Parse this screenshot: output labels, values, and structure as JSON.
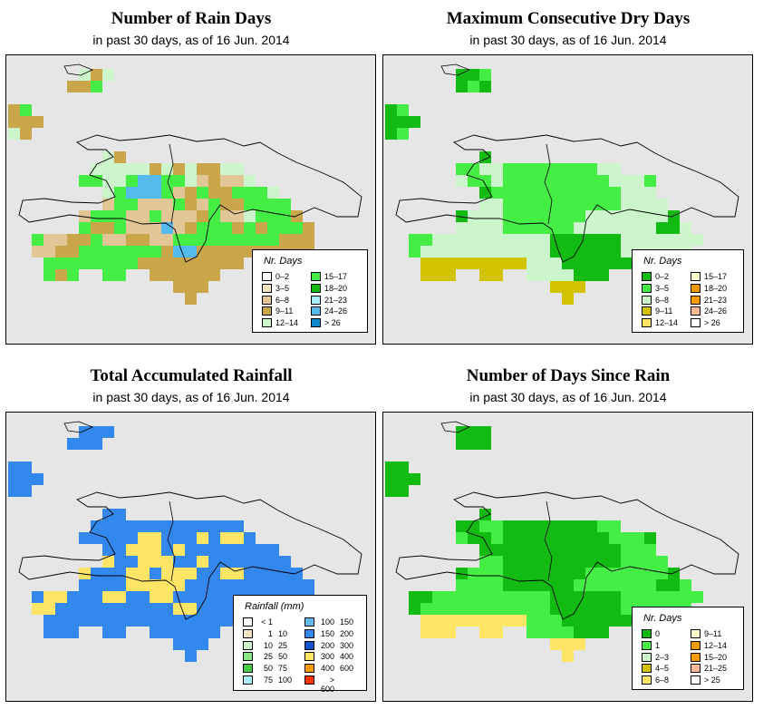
{
  "panels": [
    {
      "title": "Number of Rain Days",
      "subtitle": "in past 30 days, as of  16 Jun. 2014",
      "legend_title": "Nr. Days",
      "legend": [
        {
          "label": "0–2",
          "color": "#ffffff"
        },
        {
          "label": "3–5",
          "color": "#f3e3c2"
        },
        {
          "label": "6–8",
          "color": "#e2c695"
        },
        {
          "label": "9–11",
          "color": "#c9a64a"
        },
        {
          "label": "12–14",
          "color": "#ccf5cc"
        },
        {
          "label": "15–17",
          "color": "#44ee44"
        },
        {
          "label": "18–20",
          "color": "#11bb11"
        },
        {
          "label": "21–23",
          "color": "#aaeeff"
        },
        {
          "label": "24–26",
          "color": "#55bbee"
        },
        {
          "label": "> 26",
          "color": "#1188cc"
        }
      ]
    },
    {
      "title": "Maximum Consecutive Dry Days",
      "subtitle": "in past 30 days, as of  16 Jun. 2014",
      "legend_title": "Nr. Days",
      "legend": [
        {
          "label": "0–2",
          "color": "#11bb11"
        },
        {
          "label": "3–5",
          "color": "#44ee44"
        },
        {
          "label": "6–8",
          "color": "#ccf5cc"
        },
        {
          "label": "9–11",
          "color": "#d2c200"
        },
        {
          "label": "12–14",
          "color": "#ffe566"
        },
        {
          "label": "15–17",
          "color": "#ffffcc"
        },
        {
          "label": "18–20",
          "color": "#ee9900"
        },
        {
          "label": "21–23",
          "color": "#ff9900"
        },
        {
          "label": "24–26",
          "color": "#ffbb99"
        },
        {
          "label": "> 26",
          "color": "#ffffff"
        }
      ]
    },
    {
      "title": "Total Accumulated Rainfall",
      "subtitle": "in past 30 days, as of  16 Jun. 2014",
      "legend_title": "Rainfall (mm)",
      "legend": [
        {
          "lo": "< 1",
          "hi": "",
          "color": "#ffffff"
        },
        {
          "lo": "1",
          "hi": "10",
          "color": "#f3e3c2"
        },
        {
          "lo": "10",
          "hi": "25",
          "color": "#ccf5cc"
        },
        {
          "lo": "25",
          "hi": "50",
          "color": "#88e888"
        },
        {
          "lo": "50",
          "hi": "75",
          "color": "#44cc44"
        },
        {
          "lo": "75",
          "hi": "100",
          "color": "#aaeeff"
        },
        {
          "lo": "100",
          "hi": "150",
          "color": "#66bbee"
        },
        {
          "lo": "150",
          "hi": "200",
          "color": "#3388ee"
        },
        {
          "lo": "200",
          "hi": "300",
          "color": "#1155cc"
        },
        {
          "lo": "300",
          "hi": "400",
          "color": "#ffe566"
        },
        {
          "lo": "400",
          "hi": "600",
          "color": "#ff9900"
        },
        {
          "lo": "> 600",
          "hi": "",
          "color": "#ff3300"
        }
      ]
    },
    {
      "title": "Number of Days Since Rain",
      "subtitle": "in past 30 days, as of  16 Jun. 2014",
      "legend_title": "Nr. Days",
      "legend": [
        {
          "label": "0",
          "color": "#11bb11"
        },
        {
          "label": "1",
          "color": "#44ee44"
        },
        {
          "label": "2–3",
          "color": "#ccf5cc"
        },
        {
          "label": "4–5",
          "color": "#d2c200"
        },
        {
          "label": "6–8",
          "color": "#ffe566"
        },
        {
          "label": "9–11",
          "color": "#ffffcc"
        },
        {
          "label": "12–14",
          "color": "#ee9900"
        },
        {
          "label": "15–20",
          "color": "#ff9900"
        },
        {
          "label": "21–25",
          "color": "#ffbb99"
        },
        {
          "label": "> 25",
          "color": "#ffffff"
        }
      ]
    }
  ],
  "grids": [
    [
      "...............................",
      "......ABA......................",
      ".....BBC.......................",
      "...............................",
      "BC.............................",
      "BBB............................",
      "AB.............................",
      "...............................",
      "........AB.....................",
      ".......AAAAABABABBAA...........",
      "......CCAACDDCCAEBEEA..........",
      "........ACDDDCEBCBBCCCA........",
      "........ECCEEECBECBBCCCC.......",
      "......ECCCEECEEEBCEEACCCB......",
      "......CBBCEEEDEBCCCBCBCCCB.....",
      "..CEEBBCEEBBEECCCCCCCCCBBB.....",
      "..EEBBCCCCCCCBDDBBBBBBBBBB.....",
      "...CCCCCCCCBBBBBBBBB..BBB......",
      "...CBC..CC..BBBBBB.............",
      "..............BBB..............",
      "...............B..............."
    ],
    [
      "...............................",
      "......AAB......................",
      "......ABA......................",
      "...............................",
      "AB.............................",
      "AAA............................",
      "AB.............................",
      "...............................",
      "........A........................",
      "......BBCCBBBBBBBBCC...........",
      "......CBBCBBBBBBBBBCCCB........",
      "........ABBBBBBBBBBBCCC........",
      "........CCBBBBBBBBBBCCCC.......",
      "......ACCCBBBBBBBCCCCCCCA......",
      "......CCCCBBBBBBCCCCCCCAAC.....",
      "..BBCCCCCCCCCCAAAAAACCCCCCC....",
      "..BCCCCCCCCCCCAAAAAACCCCCC.....",
      "...DDDDDDDDDCCCAAAAAA...AA......",
      "...DDD..DD..CCCCAAA............",
      "..............DDD..............",
      "...............D..............."
    ]
  ]
}
